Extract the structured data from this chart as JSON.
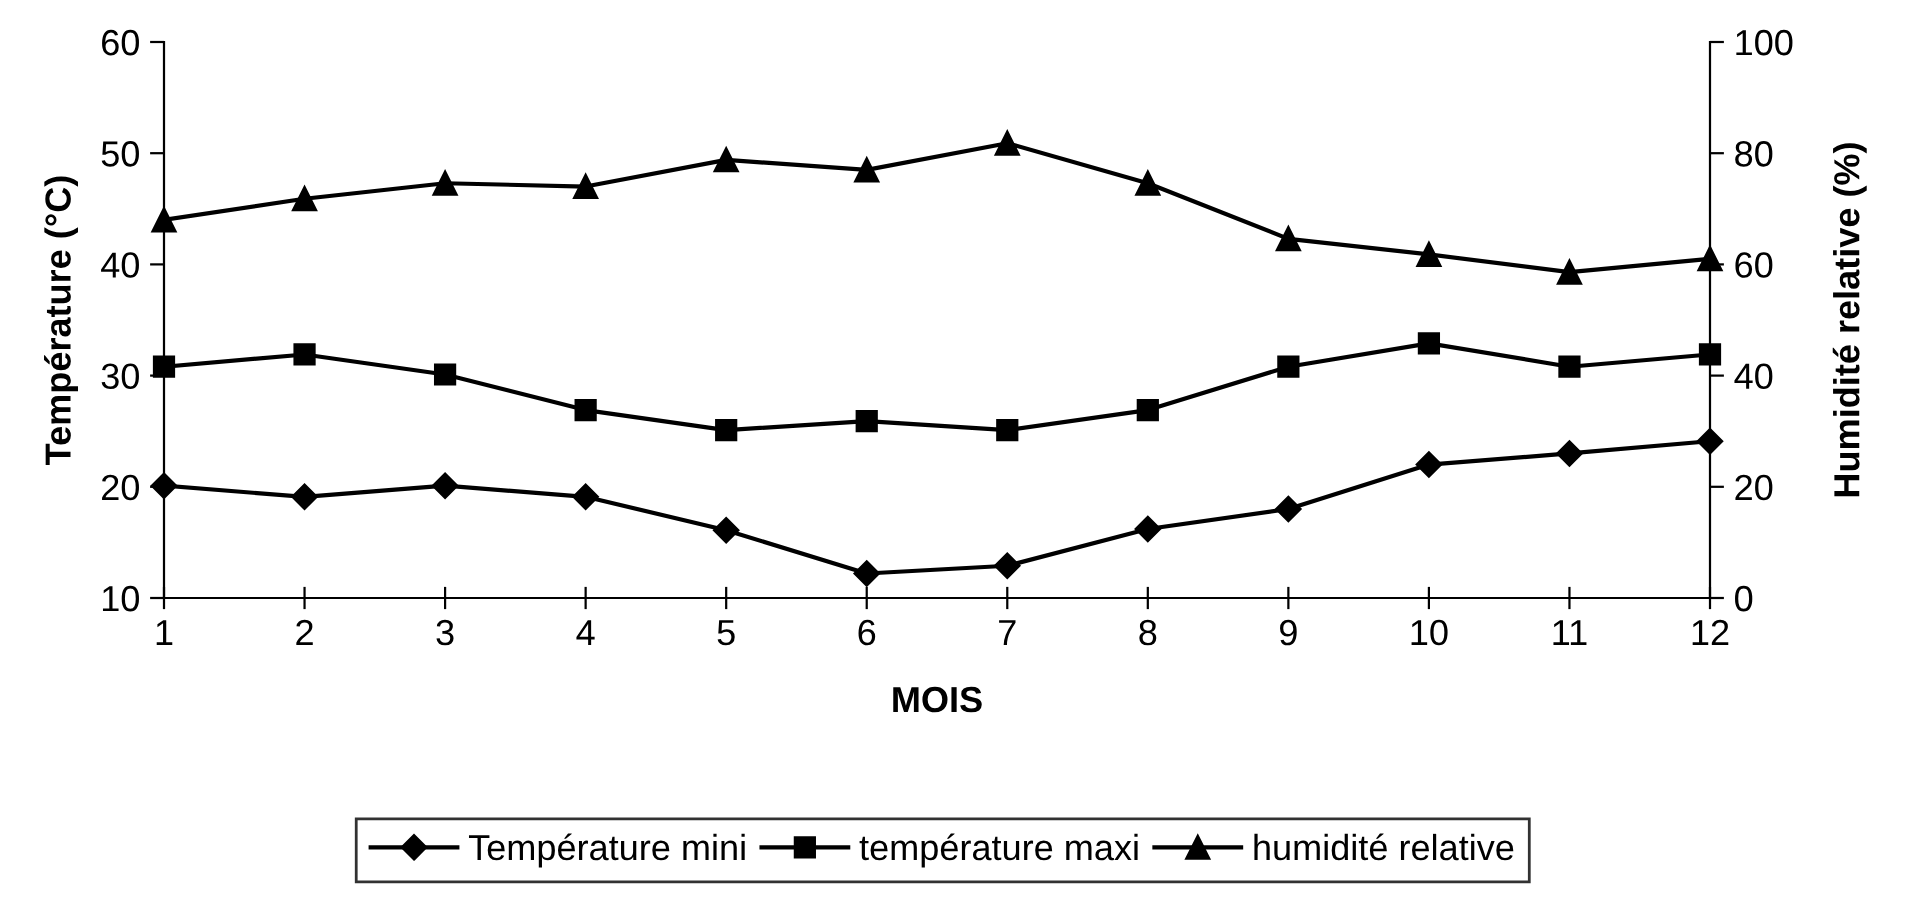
{
  "chart_data": {
    "type": "line",
    "xlabel": "MOIS",
    "ylabel": "Température (°C)",
    "y2label": "Humidité relative (%)",
    "x": [
      1,
      2,
      3,
      4,
      5,
      6,
      7,
      8,
      9,
      10,
      11,
      12
    ],
    "xlim": [
      1,
      12
    ],
    "xticks": [
      1,
      2,
      3,
      4,
      5,
      6,
      7,
      8,
      9,
      10,
      11,
      12
    ],
    "ylim": [
      10,
      60
    ],
    "yticks": [
      10,
      20,
      30,
      40,
      50,
      60
    ],
    "y2lim": [
      0,
      100
    ],
    "y2ticks": [
      0,
      20,
      40,
      60,
      80,
      100
    ],
    "grid": false,
    "legend": "bottom",
    "line_style": "solid",
    "series": [
      {
        "name": "Température mini",
        "color": "#000000",
        "marker": "diamond",
        "values": [
          20.1,
          19.1,
          20.1,
          19.1,
          16.1,
          12.2,
          12.9,
          16.2,
          18.0,
          22.0,
          23.0,
          24.1
        ]
      },
      {
        "name": "température maxi",
        "color": "#000000",
        "marker": "square",
        "values": [
          30.8,
          31.9,
          30.1,
          26.9,
          25.1,
          25.9,
          25.1,
          26.9,
          30.8,
          32.9,
          30.8,
          31.9
        ]
      },
      {
        "name": "humidité relative",
        "color": "#000000",
        "marker": "triangle",
        "axis": "y2",
        "values": [
          68.0,
          71.8,
          74.6,
          74.0,
          78.8,
          77.0,
          81.8,
          74.6,
          64.6,
          61.8,
          58.6,
          61.0
        ]
      }
    ]
  }
}
